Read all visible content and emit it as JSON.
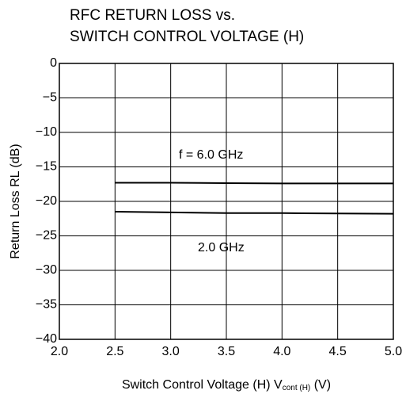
{
  "chart_data": {
    "type": "line",
    "title": [
      "RFC  RETURN LOSS vs.",
      "SWITCH CONTROL VOLTAGE (H)"
    ],
    "xlabel": {
      "text": "Switch Control Voltage (H)  V",
      "sub": "cont (H)",
      "unit": " (V)"
    },
    "ylabel": "Return Loss  RL (dB)",
    "x": [
      2.5,
      3.0,
      3.5,
      4.0,
      4.5,
      5.0
    ],
    "series": [
      {
        "name": "f = 6.0 GHz",
        "color": "#000000",
        "values": [
          -17.3,
          -17.3,
          -17.35,
          -17.4,
          -17.4,
          -17.4
        ]
      },
      {
        "name": "2.0 GHz",
        "color": "#000000",
        "values": [
          -21.5,
          -21.6,
          -21.7,
          -21.7,
          -21.75,
          -21.8
        ]
      }
    ],
    "xlim": [
      2.0,
      5.0
    ],
    "ylim": [
      -40,
      0
    ],
    "xticks": [
      {
        "value": 2.0,
        "label": "2.0"
      },
      {
        "value": 2.5,
        "label": "2.5"
      },
      {
        "value": 3.0,
        "label": "3.0"
      },
      {
        "value": 3.5,
        "label": "3.5"
      },
      {
        "value": 4.0,
        "label": "4.0"
      },
      {
        "value": 4.5,
        "label": "4.5"
      },
      {
        "value": 5.0,
        "label": "5.0"
      }
    ],
    "yticks": [
      {
        "value": 0,
        "label": "0"
      },
      {
        "value": -5,
        "label": "−5"
      },
      {
        "value": -10,
        "label": "−10"
      },
      {
        "value": -15,
        "label": "−15"
      },
      {
        "value": -20,
        "label": "−20"
      },
      {
        "value": -25,
        "label": "−25"
      },
      {
        "value": -30,
        "label": "−30"
      },
      {
        "value": -35,
        "label": "−35"
      },
      {
        "value": -40,
        "label": "−40"
      }
    ],
    "grid": true
  }
}
